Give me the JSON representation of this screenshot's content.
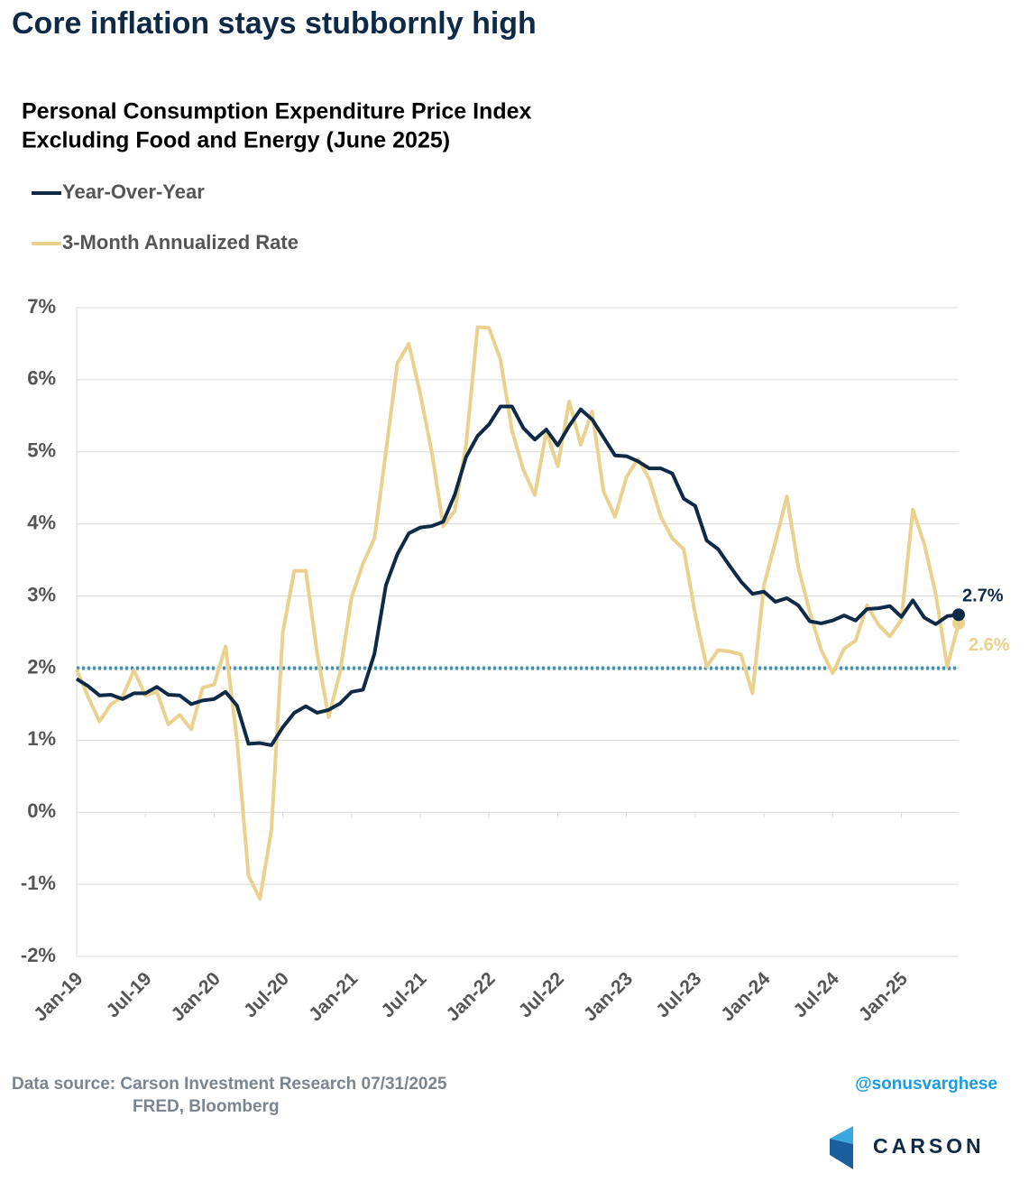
{
  "chart_data": {
    "type": "line",
    "title": "Core inflation stays stubbornly high",
    "subtitle": [
      "Personal Consumption Expenditure Price Index",
      "Excluding Food and Energy (June 2025)"
    ],
    "categories": [
      "Jan-19",
      null,
      null,
      null,
      null,
      null,
      "Jul-19",
      null,
      null,
      null,
      null,
      null,
      "Jan-20",
      null,
      null,
      null,
      null,
      null,
      "Jul-20",
      null,
      null,
      null,
      null,
      null,
      "Jan-21",
      null,
      null,
      null,
      null,
      null,
      "Jul-21",
      null,
      null,
      null,
      null,
      null,
      "Jan-22",
      null,
      null,
      null,
      null,
      null,
      "Jul-22",
      null,
      null,
      null,
      null,
      null,
      "Jan-23",
      null,
      null,
      null,
      null,
      null,
      "Jul-23",
      null,
      null,
      null,
      null,
      null,
      "Jan-24",
      null,
      null,
      null,
      null,
      null,
      "Jul-24",
      null,
      null,
      null,
      null,
      null,
      "Jan-25",
      null,
      null,
      null,
      null,
      null
    ],
    "series": [
      {
        "name": "Year-Over-Year",
        "color": "#0e2a47",
        "end_label": "2.7%",
        "values": [
          1.85,
          1.75,
          1.62,
          1.63,
          1.57,
          1.65,
          1.65,
          1.74,
          1.63,
          1.62,
          1.5,
          1.55,
          1.57,
          1.67,
          1.48,
          0.95,
          0.96,
          0.93,
          1.18,
          1.38,
          1.47,
          1.38,
          1.42,
          1.51,
          1.67,
          1.7,
          2.2,
          3.15,
          3.58,
          3.87,
          3.95,
          3.97,
          4.03,
          4.4,
          4.93,
          5.22,
          5.38,
          5.63,
          5.63,
          5.33,
          5.17,
          5.31,
          5.09,
          5.36,
          5.59,
          5.45,
          5.2,
          4.95,
          4.94,
          4.87,
          4.77,
          4.77,
          4.7,
          4.35,
          4.25,
          3.77,
          3.65,
          3.42,
          3.2,
          3.03,
          3.06,
          2.92,
          2.97,
          2.87,
          2.65,
          2.62,
          2.66,
          2.73,
          2.66,
          2.82,
          2.83,
          2.86,
          2.71,
          2.94,
          2.7,
          2.61,
          2.72,
          2.74
        ]
      },
      {
        "name": "3-Month Annualized Rate",
        "color": "#ead18e",
        "end_label": "2.6%",
        "values": [
          1.98,
          1.6,
          1.26,
          1.5,
          1.6,
          1.97,
          1.62,
          1.67,
          1.22,
          1.35,
          1.15,
          1.73,
          1.77,
          2.3,
          1.0,
          -0.88,
          -1.2,
          -0.25,
          2.5,
          3.35,
          3.35,
          2.2,
          1.32,
          1.95,
          2.98,
          3.45,
          3.8,
          5.0,
          6.23,
          6.5,
          5.8,
          5.0,
          3.97,
          4.18,
          5.1,
          6.73,
          6.72,
          6.28,
          5.3,
          4.75,
          4.4,
          5.28,
          4.8,
          5.7,
          5.1,
          5.56,
          4.45,
          4.1,
          4.65,
          4.9,
          4.62,
          4.1,
          3.8,
          3.65,
          2.75,
          2.02,
          2.25,
          2.23,
          2.19,
          1.65,
          3.15,
          3.75,
          4.38,
          3.4,
          2.78,
          2.25,
          1.93,
          2.27,
          2.38,
          2.87,
          2.6,
          2.44,
          2.67,
          4.2,
          3.72,
          3.03,
          2.02,
          2.62
        ]
      }
    ],
    "reference_line": {
      "value": 2,
      "color": "#1a9be0"
    },
    "ylim": [
      -2,
      7
    ],
    "yticks": [
      {
        "value": -2,
        "label": "-2%"
      },
      {
        "value": -1,
        "label": "-1%"
      },
      {
        "value": 0,
        "label": "0%"
      },
      {
        "value": 1,
        "label": "1%"
      },
      {
        "value": 2,
        "label": "2%"
      },
      {
        "value": 3,
        "label": "3%"
      },
      {
        "value": 4,
        "label": "4%"
      },
      {
        "value": 5,
        "label": "5%"
      },
      {
        "value": 6,
        "label": "6%"
      },
      {
        "value": 7,
        "label": "7%"
      }
    ],
    "grid": true,
    "legend": "top-left",
    "source": [
      "Data source: Carson Investment Research  07/31/2025",
      "FRED, Bloomberg"
    ],
    "handle": "@sonusvarghese",
    "brand": "CARSON"
  }
}
